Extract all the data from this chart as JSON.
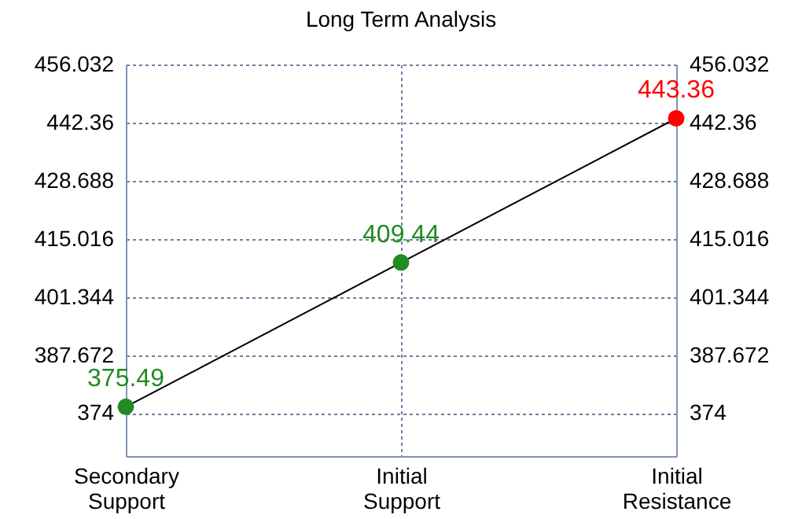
{
  "chart_data": {
    "type": "line",
    "title": "Long Term Analysis",
    "categories": [
      "Secondary Support",
      "Initial Support",
      "Initial Resistance"
    ],
    "series": [
      {
        "color": "#000000",
        "colors": [
          "#228b22",
          "#228b22",
          "#ff0000"
        ],
        "values": [
          375.49,
          409.44,
          443.36
        ]
      }
    ],
    "data_labels": true,
    "marker": "circle",
    "line_style": "solid",
    "grid": true,
    "ylim": [
      363.9,
      456.032
    ],
    "yticks": [
      374,
      387.672,
      401.344,
      415.016,
      428.688,
      442.36,
      456.032
    ],
    "y2lim": [
      363.9,
      456.032
    ],
    "y2ticks": [
      374,
      387.672,
      401.344,
      415.016,
      428.688,
      442.36,
      456.032
    ]
  }
}
